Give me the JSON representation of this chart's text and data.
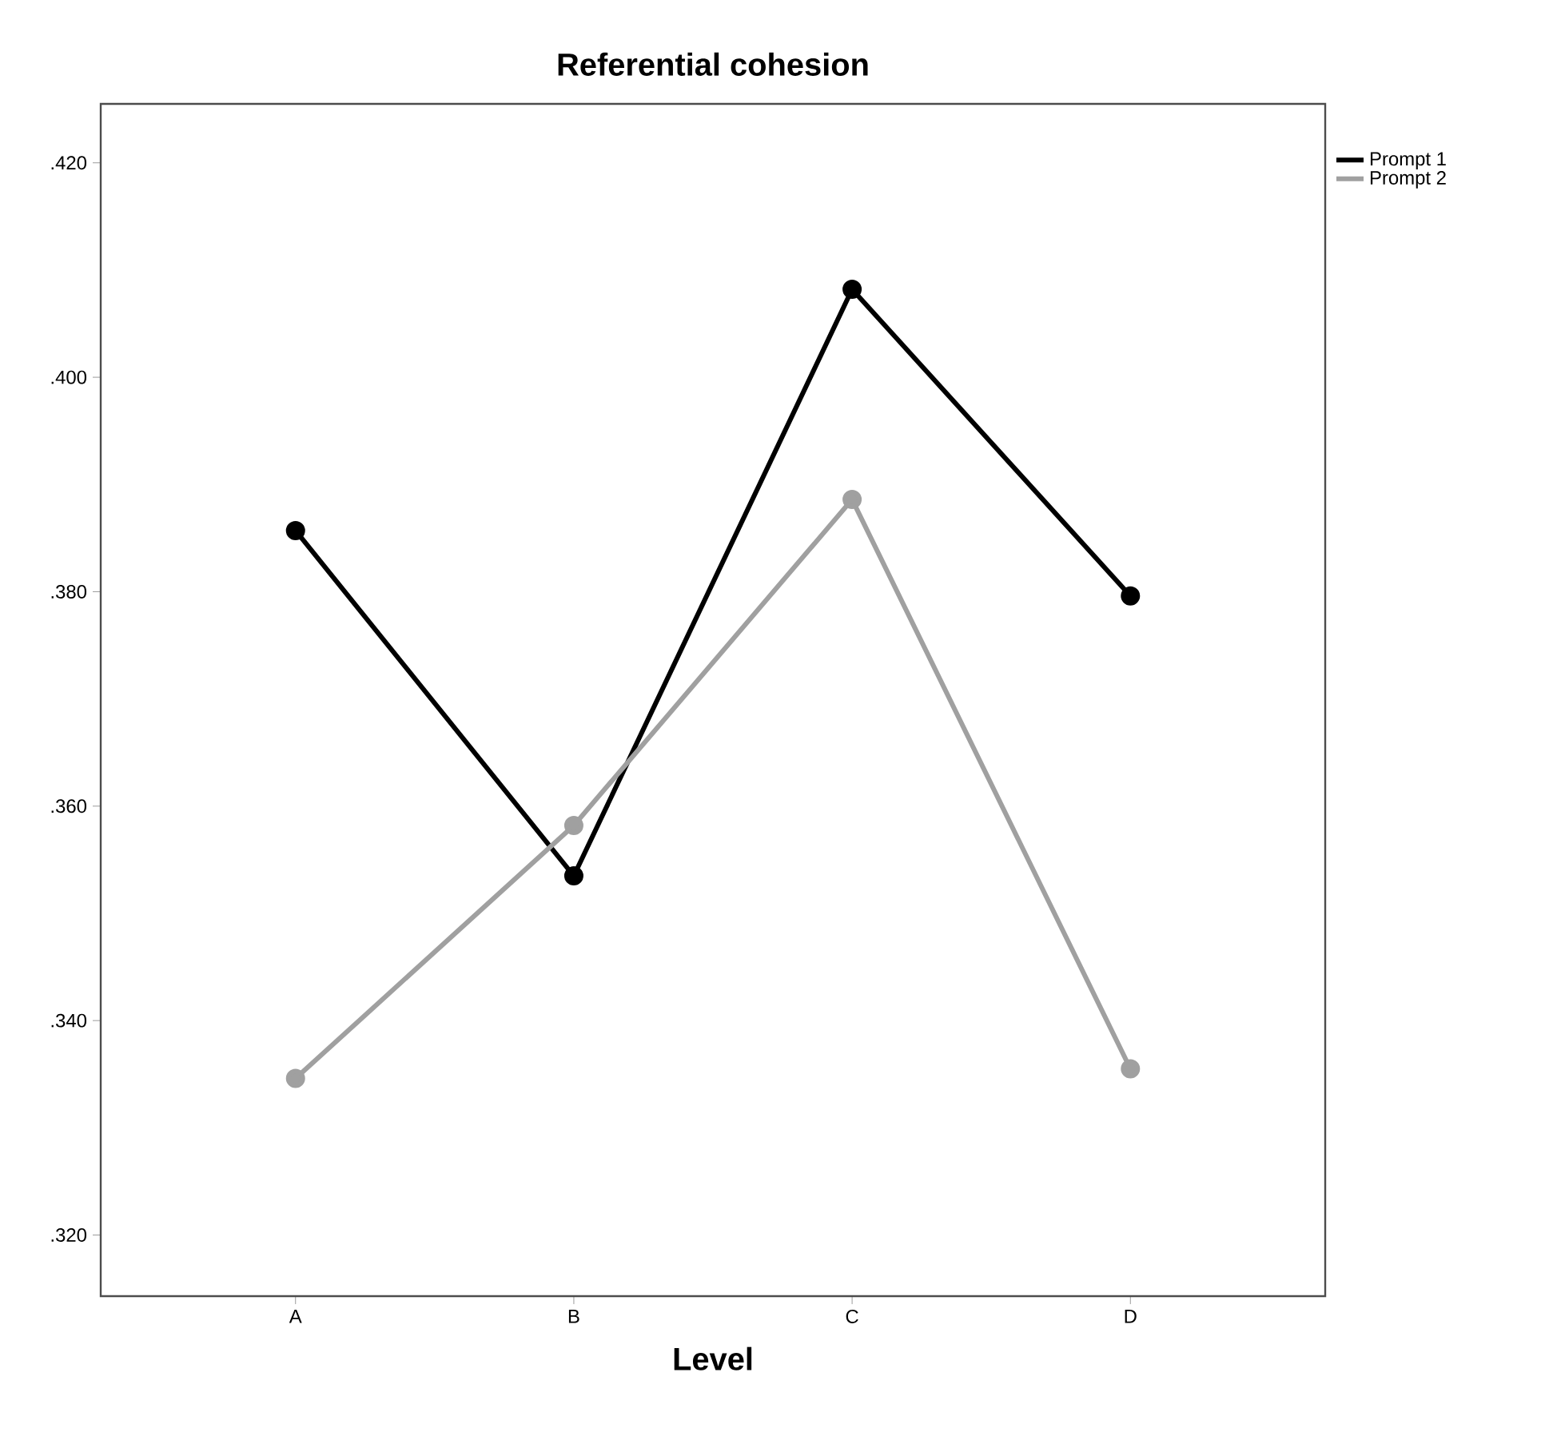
{
  "chart_data": {
    "type": "line",
    "title": "Referential cohesion",
    "xlabel": "Level",
    "categories": [
      "A",
      "B",
      "C",
      "D"
    ],
    "series": [
      {
        "name": "Prompt 1",
        "color": "#000000",
        "values": [
          0.3857,
          0.3535,
          0.4082,
          0.3796
        ]
      },
      {
        "name": "Prompt 2",
        "color": "#a0a0a0",
        "values": [
          0.3346,
          0.3582,
          0.3886,
          0.3355
        ]
      }
    ],
    "ylim": [
      0.3143,
      0.4255
    ],
    "yticks": [
      {
        "value": 0.32,
        "label": ".320"
      },
      {
        "value": 0.34,
        "label": ".340"
      },
      {
        "value": 0.36,
        "label": ".360"
      },
      {
        "value": 0.38,
        "label": ".380"
      },
      {
        "value": 0.4,
        "label": ".400"
      },
      {
        "value": 0.42,
        "label": ".420"
      }
    ],
    "legend": "top right",
    "marker": "circle",
    "line_style": "solid"
  }
}
